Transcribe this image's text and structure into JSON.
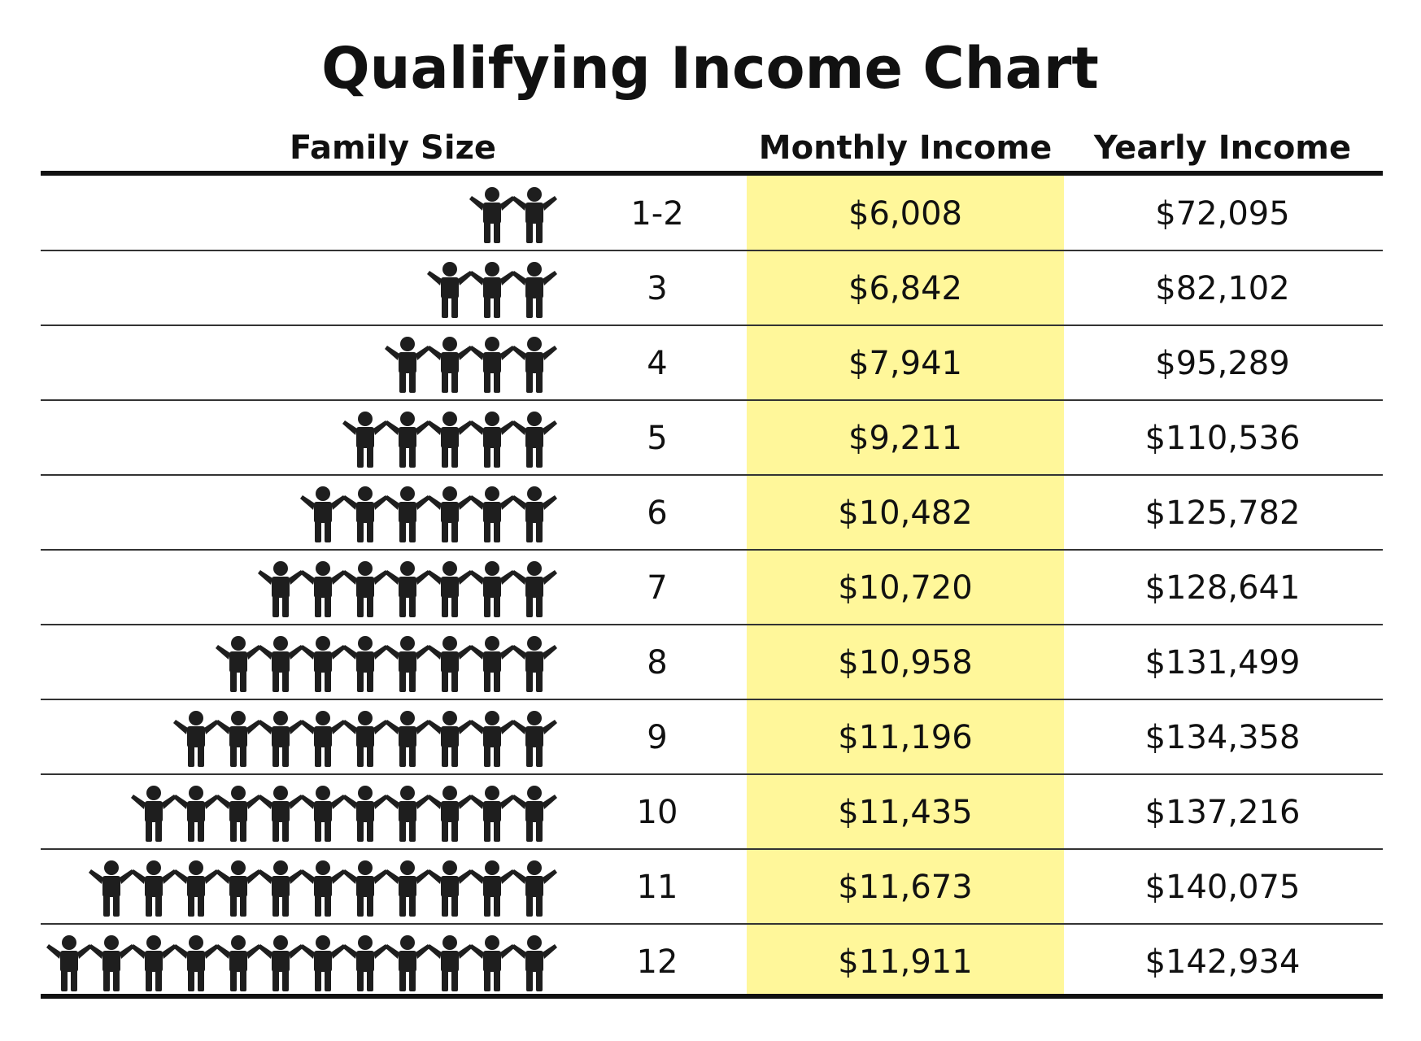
{
  "chart_data": {
    "type": "table",
    "title": "Qualifying Income Chart",
    "columns": [
      "Family Size",
      "Monthly Income",
      "Yearly Income"
    ],
    "highlight_color": "#fff79a",
    "rows": [
      {
        "family_size": "1-2",
        "people_icons": 2,
        "monthly": "$6,008",
        "yearly": "$72,095"
      },
      {
        "family_size": "3",
        "people_icons": 3,
        "monthly": "$6,842",
        "yearly": "$82,102"
      },
      {
        "family_size": "4",
        "people_icons": 4,
        "monthly": "$7,941",
        "yearly": "$95,289"
      },
      {
        "family_size": "5",
        "people_icons": 5,
        "monthly": "$9,211",
        "yearly": "$110,536"
      },
      {
        "family_size": "6",
        "people_icons": 6,
        "monthly": "$10,482",
        "yearly": "$125,782"
      },
      {
        "family_size": "7",
        "people_icons": 7,
        "monthly": "$10,720",
        "yearly": "$128,641"
      },
      {
        "family_size": "8",
        "people_icons": 8,
        "monthly": "$10,958",
        "yearly": "$131,499"
      },
      {
        "family_size": "9",
        "people_icons": 9,
        "monthly": "$11,196",
        "yearly": "$134,358"
      },
      {
        "family_size": "10",
        "people_icons": 10,
        "monthly": "$11,435",
        "yearly": "$137,216"
      },
      {
        "family_size": "11",
        "people_icons": 11,
        "monthly": "$11,673",
        "yearly": "$140,075"
      },
      {
        "family_size": "12",
        "people_icons": 12,
        "monthly": "$11,911",
        "yearly": "$142,934"
      }
    ]
  }
}
